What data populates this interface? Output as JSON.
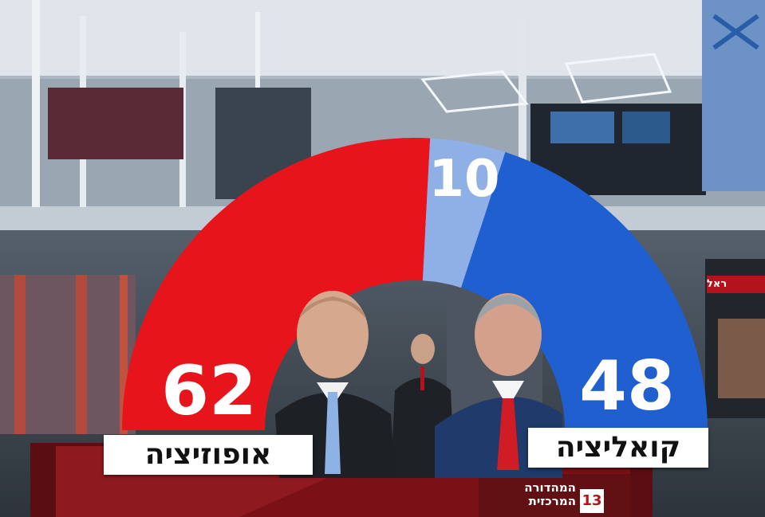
{
  "chart_data": {
    "type": "pie",
    "variant": "semicircle",
    "total_seats": 120,
    "series": [
      {
        "label": "אופוזיציה",
        "value": 62,
        "color": "#e8141c"
      },
      {
        "label": "",
        "value": 10,
        "color": "#8fb0e6"
      },
      {
        "label": "קואליציה",
        "value": 48,
        "color": "#1f5fcf"
      }
    ],
    "title": "",
    "order": "left-to-right"
  },
  "labels": {
    "opposition": "אופוזיציה",
    "coalition": "קואליציה",
    "opposition_seats": "62",
    "undecided_seats": "10",
    "coalition_seats": "48"
  },
  "broadcast": {
    "program_name": "המהדורה\nהמרכזית",
    "channel_number": "13",
    "side_banner": "ראל"
  },
  "colors": {
    "opposition": "#e8141c",
    "undecided": "#8fb0e6",
    "coalition": "#1f5fcf",
    "label_bg": "#ffffff",
    "lower_third": "#7a1116"
  }
}
